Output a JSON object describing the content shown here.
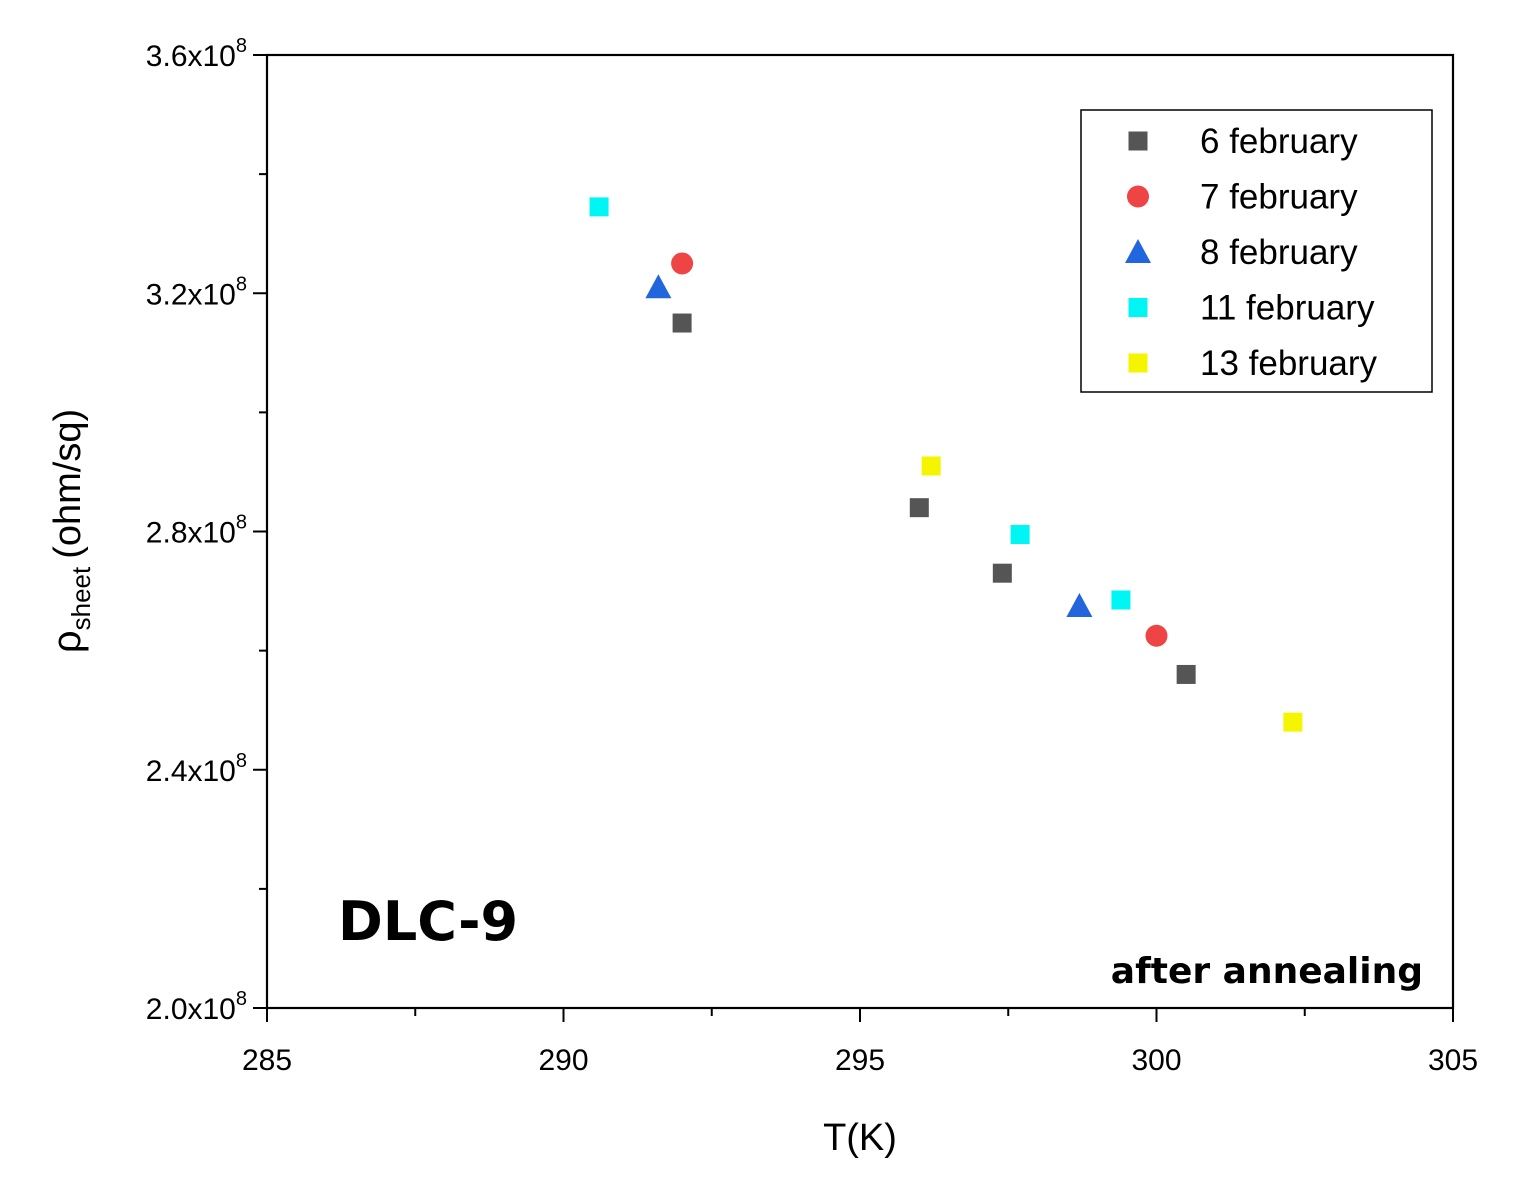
{
  "chart_data": {
    "type": "scatter",
    "title": "",
    "xlabel": "T(K)",
    "ylabel_symbol": "ρ",
    "ylabel_subscript": "sheet",
    "ylabel_unit": "(ohm/sq)",
    "xlim": [
      285,
      305
    ],
    "ylim": [
      200000000,
      360000000
    ],
    "x_ticks": [
      285,
      290,
      295,
      300,
      305
    ],
    "x_minor_ticks": [
      287.5,
      292.5,
      297.5,
      302.5
    ],
    "y_ticks": [
      {
        "value": 200000000,
        "mantissa": "2.0x10",
        "exp": "8"
      },
      {
        "value": 240000000,
        "mantissa": "2.4x10",
        "exp": "8"
      },
      {
        "value": 280000000,
        "mantissa": "2.8x10",
        "exp": "8"
      },
      {
        "value": 320000000,
        "mantissa": "3.2x10",
        "exp": "8"
      },
      {
        "value": 360000000,
        "mantissa": "3.6x10",
        "exp": "8"
      }
    ],
    "y_minor_ticks": [
      220000000,
      260000000,
      300000000,
      340000000
    ],
    "legend_position": "top-right",
    "series": [
      {
        "name": "6 february",
        "marker": "square",
        "color": "#555555",
        "points": [
          [
            292.0,
            315000000
          ],
          [
            296.0,
            284000000
          ],
          [
            297.4,
            273000000
          ],
          [
            300.5,
            256000000
          ]
        ]
      },
      {
        "name": "7 february",
        "marker": "circle",
        "color": "#ee4444",
        "points": [
          [
            292.0,
            325000000
          ],
          [
            300.0,
            262500000
          ]
        ]
      },
      {
        "name": "8 february",
        "marker": "triangle",
        "color": "#2266dd",
        "points": [
          [
            291.6,
            321000000
          ],
          [
            298.7,
            267500000
          ]
        ]
      },
      {
        "name": "11 february",
        "marker": "square",
        "color": "#00f5f5",
        "points": [
          [
            290.6,
            334500000
          ],
          [
            297.7,
            279500000
          ],
          [
            299.4,
            268500000
          ]
        ]
      },
      {
        "name": "13 february",
        "marker": "square",
        "color": "#f5f500",
        "points": [
          [
            296.2,
            291000000
          ],
          [
            302.3,
            248000000
          ]
        ]
      }
    ],
    "annotations": {
      "sample": "DLC-9",
      "condition": "after annealing"
    }
  }
}
